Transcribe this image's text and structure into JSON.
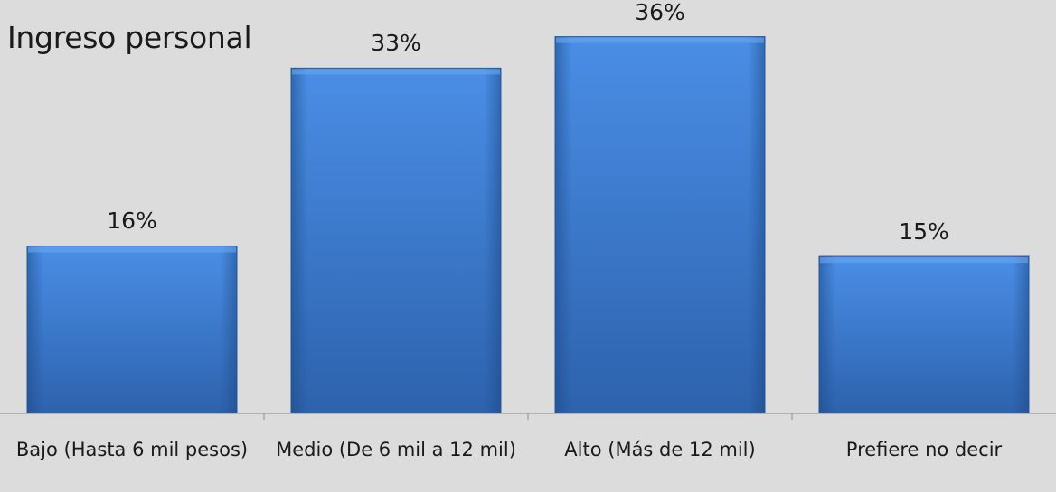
{
  "chart_data": {
    "type": "bar",
    "title": "Ingreso personal",
    "categories": [
      "Bajo (Hasta 6 mil pesos)",
      "Medio (De 6 mil a 12 mil)",
      "Alto (Más de 12 mil)",
      "Prefiere no decir"
    ],
    "values": [
      16,
      33,
      36,
      15
    ],
    "value_labels": [
      "16%",
      "33%",
      "36%",
      "15%"
    ],
    "unit": "%",
    "ylim": [
      0,
      39.5
    ],
    "grid": false,
    "legend": "none",
    "bar_color": "#3f7fd2",
    "background_color": "#dcdcdc"
  }
}
